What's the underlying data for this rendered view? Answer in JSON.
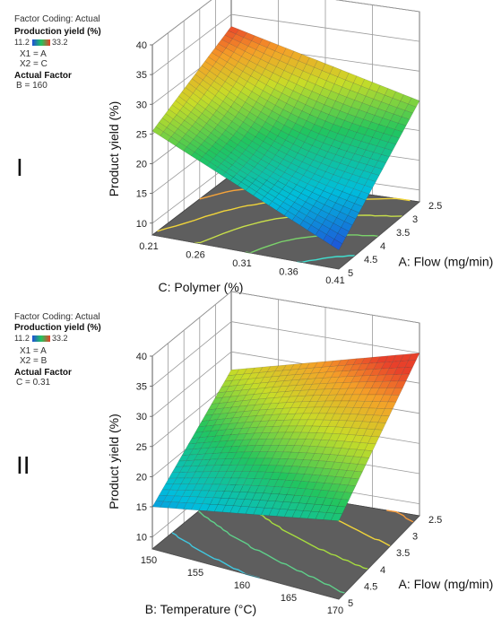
{
  "chart_data": [
    {
      "type": "surface3d",
      "panel_label": "I",
      "header": {
        "coding": "Factor Coding: Actual",
        "response": "Production yield (%)",
        "scale_min": "11.2",
        "scale_max": "33.2",
        "x1": "X1 = A",
        "x2": "X2 = C",
        "actual_factor_title": "Actual Factor",
        "actual_factor_value": "B = 160"
      },
      "zlabel": "Product yield (%)",
      "xlabel": "A: Flow (mg/min)",
      "ylabel": "C: Polymer (%)",
      "x_ticks": [
        "2.5",
        "3",
        "3.5",
        "4",
        "4.5",
        "5"
      ],
      "y_ticks": [
        "0.21",
        "0.26",
        "0.31",
        "0.36",
        "0.41"
      ],
      "z_ticks": [
        "10",
        "15",
        "20",
        "25",
        "30",
        "35",
        "40"
      ],
      "zlim": [
        8,
        40
      ],
      "corners": {
        "flow_2_5_polymer_0_21": 33,
        "flow_2_5_polymer_0_41": 25,
        "flow_5_polymer_0_21": 25.5,
        "flow_5_polymer_0_41": 11.2
      }
    },
    {
      "type": "surface3d",
      "panel_label": "II",
      "header": {
        "coding": "Factor Coding: Actual",
        "response": "Production yield (%)",
        "scale_min": "11.2",
        "scale_max": "33.2",
        "x1": "X1 = A",
        "x2": "X2 = B",
        "actual_factor_title": "Actual Factor",
        "actual_factor_value": "C = 0.31"
      },
      "zlabel": "Product yield (%)",
      "xlabel": "A: Flow (mg/min)",
      "ylabel": "B: Temperature (°C)",
      "x_ticks": [
        "2.5",
        "3",
        "3.5",
        "4",
        "4.5",
        "5"
      ],
      "y_ticks": [
        "150",
        "155",
        "160",
        "165",
        "170"
      ],
      "z_ticks": [
        "10",
        "15",
        "20",
        "25",
        "30",
        "35",
        "40"
      ],
      "zlim": [
        8,
        40
      ],
      "corners": {
        "flow_2_5_temp_150": 27,
        "flow_2_5_temp_170": 35,
        "flow_5_temp_150": 15,
        "flow_5_temp_170": 21
      }
    }
  ],
  "colors": {
    "low": "#1f4fd8",
    "mid": "#22c55e",
    "high": "#e8402a",
    "floor": "#5e5e5e"
  }
}
